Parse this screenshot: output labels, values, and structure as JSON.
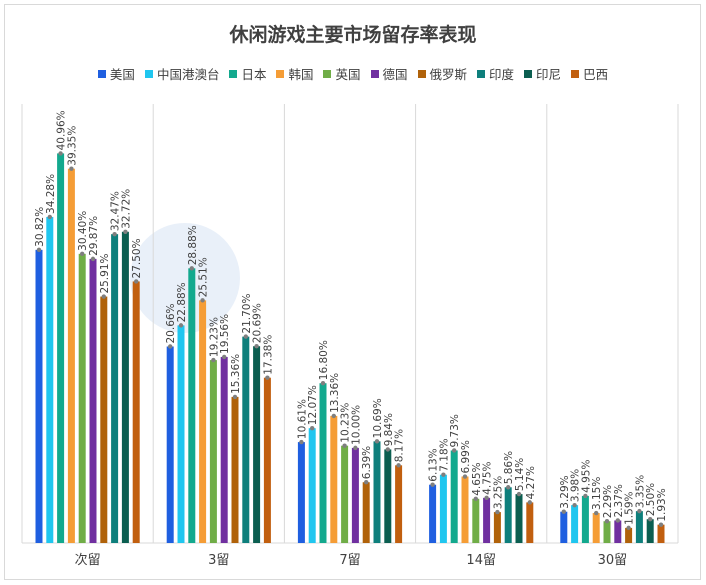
{
  "colors": {
    "text": "#404040",
    "grid": "#d9d9d9",
    "watermark": "#dfe9f7"
  },
  "chart_data": {
    "type": "bar",
    "title": "休闲游戏主要市场留存率表现",
    "categories": [
      "次留",
      "3留",
      "7留",
      "14留",
      "30留"
    ],
    "series": [
      {
        "name": "美国",
        "color": "#1f5fe0",
        "values": [
          30.82,
          20.66,
          10.61,
          6.13,
          3.29
        ]
      },
      {
        "name": "中国港澳台",
        "color": "#20c6ef",
        "values": [
          34.28,
          22.88,
          12.07,
          7.18,
          3.98
        ]
      },
      {
        "name": "日本",
        "color": "#13a98e",
        "values": [
          40.96,
          28.88,
          16.8,
          9.73,
          4.95
        ]
      },
      {
        "name": "韩国",
        "color": "#f59d36",
        "values": [
          39.35,
          25.51,
          13.36,
          6.99,
          3.15
        ]
      },
      {
        "name": "英国",
        "color": "#70ad47",
        "values": [
          30.4,
          19.23,
          10.23,
          4.65,
          2.29
        ]
      },
      {
        "name": "德国",
        "color": "#7030a0",
        "values": [
          29.87,
          19.56,
          10.0,
          4.75,
          2.37
        ]
      },
      {
        "name": "俄罗斯",
        "color": "#b0620a",
        "values": [
          25.91,
          15.36,
          6.39,
          3.25,
          1.59
        ]
      },
      {
        "name": "印度",
        "color": "#0e7f7c",
        "values": [
          32.47,
          21.7,
          10.69,
          5.86,
          3.35
        ]
      },
      {
        "name": "印尼",
        "color": "#0b5e50",
        "values": [
          32.72,
          20.69,
          9.84,
          5.14,
          2.5
        ]
      },
      {
        "name": "巴西",
        "color": "#c15f0f",
        "values": [
          27.5,
          17.38,
          8.17,
          4.27,
          1.93
        ]
      }
    ],
    "label_suffix": "%",
    "ylim": [
      0,
      45
    ],
    "grid": false,
    "legend_position": "top"
  }
}
